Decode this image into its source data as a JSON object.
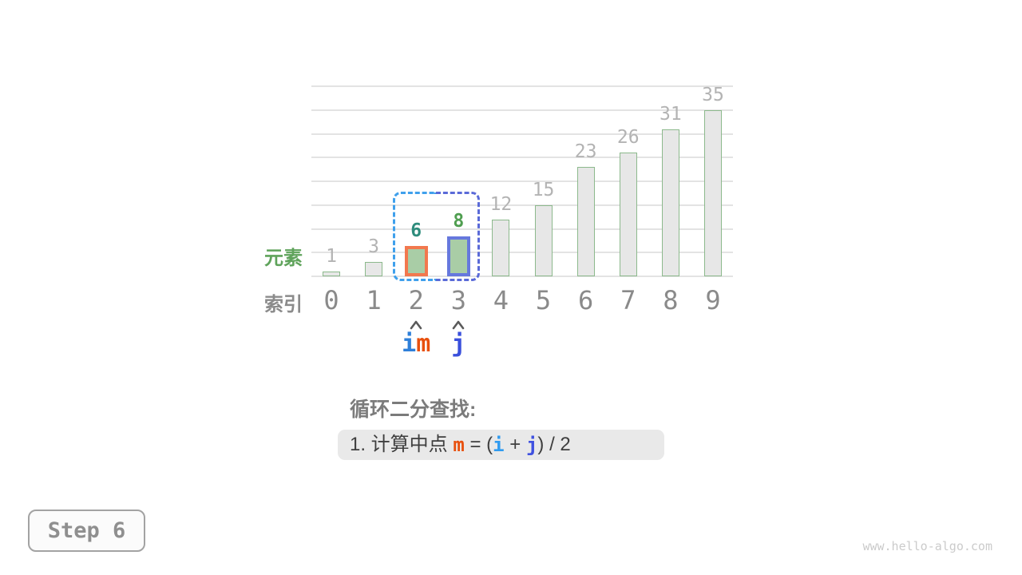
{
  "chart_data": {
    "type": "bar",
    "categories": [
      0,
      1,
      2,
      3,
      4,
      5,
      6,
      7,
      8,
      9
    ],
    "values": [
      1,
      3,
      6,
      8,
      12,
      15,
      23,
      26,
      31,
      35
    ],
    "title": "",
    "xlabel": "索引",
    "ylabel": "元素",
    "ylim": [
      0,
      40
    ],
    "grid": true,
    "grid_step": 5,
    "legend": "none",
    "highlights": [
      {
        "index": 2,
        "role": "m",
        "border_color_key": "bar_m_border",
        "value_color_key": "value_label_m"
      },
      {
        "index": 3,
        "role": "j",
        "border_color_key": "bar_j_border",
        "value_color_key": "value_label_j"
      }
    ],
    "range_box": {
      "from_index": 2,
      "to_index": 3
    }
  },
  "pointers": [
    {
      "index": 2,
      "labels": [
        {
          "text": "i",
          "color_key": "pointer_i"
        },
        {
          "text": "m",
          "color_key": "pointer_m"
        }
      ]
    },
    {
      "index": 3,
      "labels": [
        {
          "text": "j",
          "color_key": "pointer_j"
        }
      ]
    }
  ],
  "caption": {
    "heading": "循环二分查找:",
    "formula": [
      {
        "text": "1. 计算中点 ",
        "color_key": "formula_text",
        "bold": false
      },
      {
        "text": "m",
        "color_key": "formula_m",
        "bold": true
      },
      {
        "text": " = (",
        "color_key": "formula_text",
        "bold": false
      },
      {
        "text": "i",
        "color_key": "formula_i",
        "bold": true
      },
      {
        "text": " + ",
        "color_key": "formula_text",
        "bold": false
      },
      {
        "text": "j",
        "color_key": "formula_j",
        "bold": true
      },
      {
        "text": ") / 2",
        "color_key": "formula_text",
        "bold": false
      }
    ]
  },
  "step_badge": {
    "label": "Step 6"
  },
  "watermark": "www.hello-algo.com",
  "colors": {
    "grid": "#e3e3e3",
    "bar_fill": "#e7e7e7",
    "bar_border": "#8cb98c",
    "bar_highlight_fill": "#a9cda6",
    "bar_m_border": "#f2784e",
    "bar_j_border": "#6678dd",
    "range_left": "#3fa0ec",
    "range_right": "#5a6ad8",
    "value_label": "#b3b3b3",
    "value_label_m": "#2e8c7c",
    "value_label_j": "#4f9e50",
    "index_label": "#8a8a8a",
    "caret": "#5a5a5a",
    "pointer_i": "#2e7fd9",
    "pointer_m": "#e8500e",
    "pointer_j": "#3a50dc",
    "formula_text": "#3f3f3f",
    "formula_m": "#e8500e",
    "formula_i": "#309bf0",
    "formula_j": "#3f51e0",
    "ylabel": "#5fa35b",
    "xlabel": "#8b8b8b",
    "heading": "#7b7b7b",
    "pill_bg": "#e9e9e9",
    "step_text": "#8f8f8f",
    "watermark": "#cbcbcb"
  }
}
